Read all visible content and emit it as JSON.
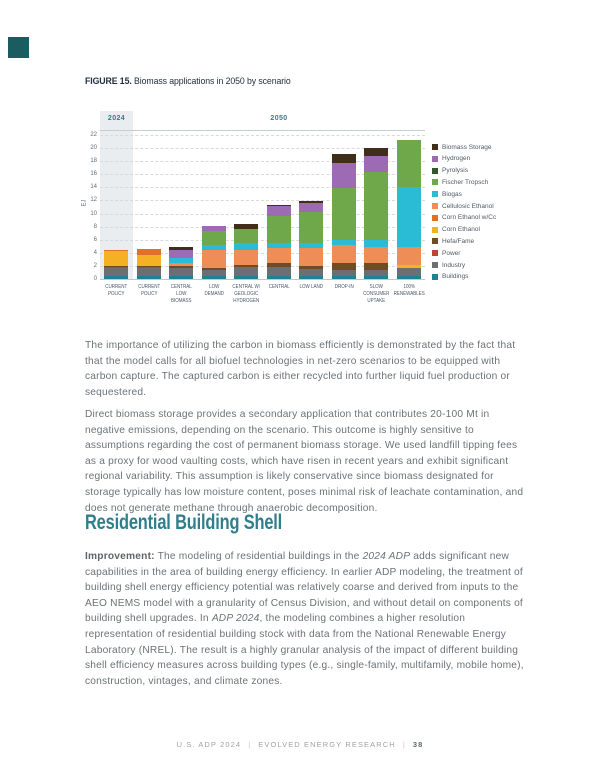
{
  "figure": {
    "caption_label": "FIGURE 15.",
    "caption_text": " Biomass applications in 2050 by scenario"
  },
  "chart_data": {
    "type": "bar",
    "stacked": true,
    "title": "Biomass applications in 2050 by scenario",
    "ylabel": "EJ",
    "ylim": [
      0,
      22
    ],
    "yticks": [
      0,
      2,
      4,
      6,
      8,
      10,
      12,
      14,
      16,
      18,
      20,
      22
    ],
    "grid": "horizontal-dashed",
    "legend_position": "right",
    "group_labels": [
      "2024",
      "2050"
    ],
    "group_band_color": "#E9EDF0",
    "categories": [
      "CURRENT\nPOLICY",
      "CURRENT\nPOLICY",
      "CENTRAL\nLOW\nBIOMASS",
      "LOW\nDEMAND",
      "CENTRAL W/\nGEOLOGIC\nHYDROGEN",
      "CENTRAL",
      "LOW LAND",
      "DROP-IN",
      "SLOW\nCONSUMER\nUPTAKE",
      "100%\nRENEWABLES"
    ],
    "series": [
      {
        "name": "Buildings",
        "color": "#1E8294",
        "values": [
          0.5,
          0.5,
          0.5,
          0.4,
          0.5,
          0.5,
          0.4,
          0.5,
          0.5,
          0.5
        ]
      },
      {
        "name": "Industry",
        "color": "#6D6E71",
        "values": [
          1.2,
          1.2,
          1.2,
          1.0,
          1.3,
          1.3,
          1.1,
          0.9,
          0.9,
          1.2
        ]
      },
      {
        "name": "Power",
        "color": "#BE4534",
        "values": [
          0.1,
          0.1,
          0,
          0,
          0,
          0,
          0,
          0,
          0,
          0
        ]
      },
      {
        "name": "Hefa/Fame",
        "color": "#6F4D24",
        "values": [
          0.2,
          0.2,
          0.3,
          0.3,
          0.3,
          0.6,
          0.5,
          1.0,
          1.0,
          0
        ]
      },
      {
        "name": "Corn Ethanol",
        "color": "#F4B223",
        "values": [
          2.4,
          1.6,
          0,
          0,
          0,
          0,
          0,
          0,
          0,
          0.4
        ]
      },
      {
        "name": "Corn Ethanol w/Cc",
        "color": "#DC7327",
        "values": [
          0.1,
          1.0,
          0,
          0,
          0,
          0,
          0,
          0,
          0,
          0
        ]
      },
      {
        "name": "Cellulosic Ethanol",
        "color": "#EE8D55",
        "values": [
          0,
          0,
          0.4,
          2.7,
          2.4,
          2.3,
          2.7,
          2.8,
          2.5,
          2.8
        ]
      },
      {
        "name": "Biogas",
        "color": "#2ABCD4",
        "values": [
          0,
          0,
          0.8,
          0.8,
          1.0,
          0.8,
          0.75,
          0.75,
          1.1,
          9.1
        ]
      },
      {
        "name": "Fischer Tropsch",
        "color": "#6EA84B",
        "values": [
          0,
          0,
          0,
          2.2,
          2.1,
          4.1,
          4.85,
          7.9,
          10.3,
          7.3
        ]
      },
      {
        "name": "Pyrolysis",
        "color": "#31572B",
        "values": [
          0,
          0,
          0,
          0,
          0,
          0,
          0,
          0,
          0,
          0
        ]
      },
      {
        "name": "Hydrogen",
        "color": "#9C6BB4",
        "values": [
          0,
          0,
          1.3,
          0.7,
          0,
          1.5,
          1.3,
          3.85,
          2.5,
          0
        ]
      },
      {
        "name": "Biomass Storage",
        "color": "#3F2E1A",
        "values": [
          0,
          0,
          0.4,
          0,
          0.8,
          0.2,
          0.3,
          1.4,
          1.2,
          0
        ]
      }
    ]
  },
  "main": {
    "para1": "The importance of utilizing the carbon in biomass efficiently is demonstrated by the fact that that the model calls for all biofuel technologies in net-zero scenarios to be equipped with carbon capture. The captured carbon is either recycled into further liquid fuel production or sequestered.",
    "para2": "Direct biomass storage provides a secondary application that contributes 20-100 Mt in negative emissions, depending on the scenario. This outcome is highly sensitive to assumptions regarding the cost of permanent biomass storage. We used landfill tipping fees as a proxy for wood vaulting costs, which have risen in recent years and exhibit significant regional variability. This assumption is likely conservative since biomass designated for storage typically has low moisture content, poses minimal risk of leachate contamination, and does not generate methane through anaerobic decomposition.",
    "heading": "Residential Building Shell",
    "para3": {
      "bold": "Improvement:",
      "t1": " The modeling of residential buildings in the ",
      "i1": "2024 ADP",
      "t2": " adds significant new capabilities in the area of building energy efficiency. In earlier ADP modeling, the treatment of building shell energy efficiency potential was relatively coarse and derived from inputs to the AEO NEMS model with a granularity of Census Division, and without detail on components of building shell upgrades. In ",
      "i2": "ADP 2024",
      "t3": ", the modeling combines a higher resolution representation of residential building stock with data from the National Renewable Energy Laboratory (NREL). The result is a highly granular analysis of the impact of different building shell efficiency measures across building types (e.g., single-family, multifamily, mobile home), construction, vintages, and climate zones."
    }
  },
  "footer": {
    "left": "U.S. ADP 2024",
    "sep": "|",
    "center": "EVOLVED ENERGY RESEARCH",
    "page_number": "38"
  },
  "colors": {
    "accent_teal": "#2C7F8C",
    "heading_teal": "#2F7E8C",
    "body_text": "#6C7277",
    "caption_text": "#22303E",
    "logo_square": "#1A5C60"
  }
}
